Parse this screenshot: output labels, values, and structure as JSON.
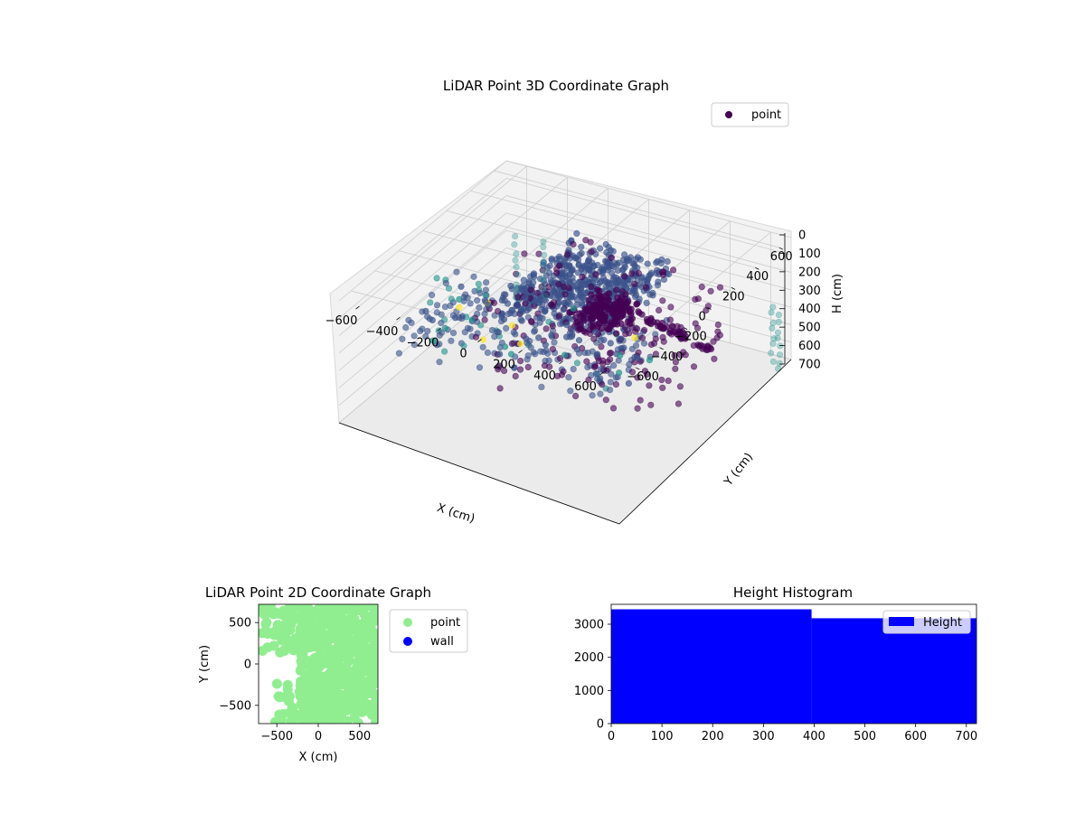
{
  "colors": {
    "viridis_dark": "#440154",
    "viridis_blue": "#3b528b",
    "viridis_teal": "#21918c",
    "viridis_green": "#5ec962",
    "viridis_yellow": "#fde725",
    "point_2d": "#90ee90",
    "wall": "#0000ff",
    "hist_bar": "#0000ff",
    "pane": "#f2f2f2",
    "grid": "#cccccc"
  },
  "chart_data": [
    {
      "type": "scatter",
      "projection": "3d",
      "title": "LiDAR Point 3D Coordinate Graph",
      "xlabel": "X (cm)",
      "ylabel": "Y (cm)",
      "zlabel": "H (cm)",
      "x_ticks": [
        "−600",
        "−400",
        "−200",
        "0",
        "200",
        "400",
        "600"
      ],
      "y_ticks": [
        "−600",
        "−400",
        "−200",
        "0",
        "200",
        "400",
        "600"
      ],
      "z_ticks": [
        "0",
        "100",
        "200",
        "300",
        "400",
        "500",
        "600",
        "700"
      ],
      "xlim": [
        -700,
        700
      ],
      "ylim": [
        -700,
        700
      ],
      "zlim": [
        0,
        700
      ],
      "z_inverted": true,
      "legend": {
        "position": "top-right",
        "entries": [
          "point"
        ]
      },
      "colormap": "viridis",
      "grid": true
    },
    {
      "type": "scatter",
      "title": "LiDAR Point 2D Coordinate Graph",
      "xlabel": "X (cm)",
      "ylabel": "Y (cm)",
      "x_ticks": [
        "−500",
        "0",
        "500"
      ],
      "y_ticks": [
        "500",
        "0",
        "−500"
      ],
      "xlim": [
        -720,
        720
      ],
      "ylim": [
        -720,
        720
      ],
      "series": [
        {
          "name": "point",
          "color": "#90ee90"
        },
        {
          "name": "wall",
          "color": "#0000ff"
        }
      ],
      "legend": {
        "position": "outside-right",
        "entries": [
          "point",
          "wall"
        ]
      }
    },
    {
      "type": "bar",
      "title": "Height Histogram",
      "x_ticks": [
        "0",
        "100",
        "200",
        "300",
        "400",
        "500",
        "600",
        "700"
      ],
      "y_ticks": [
        "0",
        "1000",
        "2000",
        "3000"
      ],
      "xlim": [
        0,
        720
      ],
      "ylim": [
        0,
        3600
      ],
      "bins": [
        {
          "from": 0,
          "to": 395,
          "value": 3450
        },
        {
          "from": 395,
          "to": 720,
          "value": 3180
        }
      ],
      "series": [
        {
          "name": "Height",
          "color": "#0000ff"
        }
      ],
      "legend": {
        "position": "top-right",
        "entries": [
          "Height"
        ]
      }
    }
  ]
}
